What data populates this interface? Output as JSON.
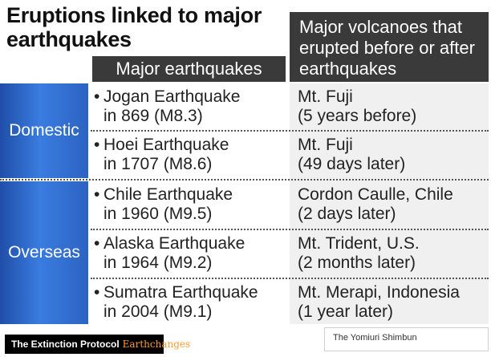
{
  "title": "Eruptions linked to major earthquakes",
  "headers": {
    "earthquakes": "Major earthquakes",
    "volcanoes": "Major volcanoes that erupted before or after earthquakes"
  },
  "groups": [
    {
      "label": "Domestic",
      "rows": [
        {
          "eq_name": "Jogan Earthquake",
          "eq_detail": "in 869 (M8.3)",
          "volcano": "Mt. Fuji",
          "timing": "(5 years before)"
        },
        {
          "eq_name": "Hoei Earthquake",
          "eq_detail": "in 1707 (M8.6)",
          "volcano": "Mt. Fuji",
          "timing": "(49 days later)"
        }
      ]
    },
    {
      "label": "Overseas",
      "rows": [
        {
          "eq_name": "Chile Earthquake",
          "eq_detail": "in 1960 (M9.5)",
          "volcano": "Cordon Caulle, Chile",
          "timing": "(2 days later)"
        },
        {
          "eq_name": "Alaska Earthquake",
          "eq_detail": "in 1964 (M9.2)",
          "volcano": "Mt. Trident, U.S.",
          "timing": "(2 months later)"
        },
        {
          "eq_name": "Sumatra Earthquake",
          "eq_detail": "in 2004 (M9.1)",
          "volcano": "Mt. Merapi, Indonesia",
          "timing": "(1 year later)"
        }
      ]
    }
  ],
  "footer": {
    "brand": "The Extinction Protocol",
    "brand_sub": "Earthchanges",
    "credit": "The Yomiuri Shimbun"
  }
}
